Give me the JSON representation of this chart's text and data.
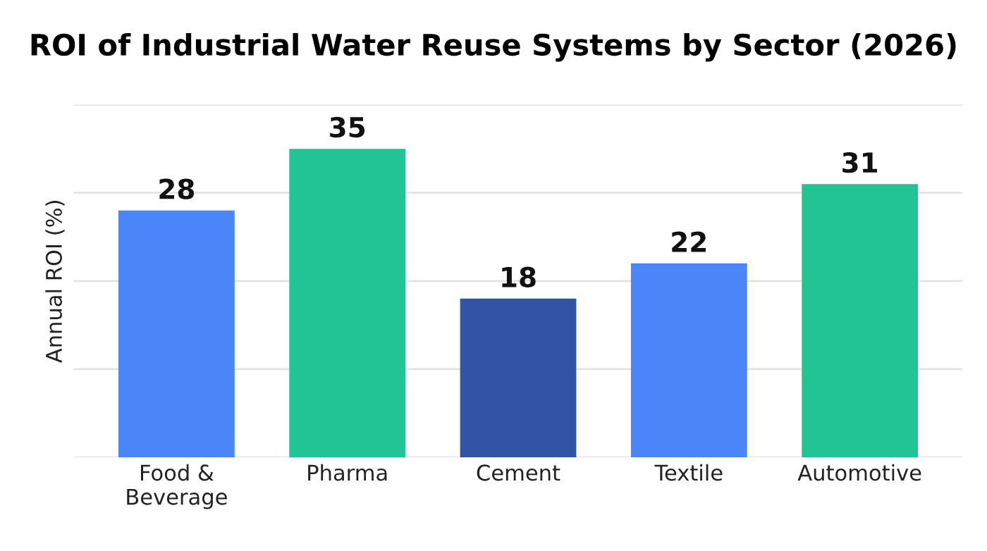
{
  "chart_data": {
    "type": "bar",
    "title": "ROI of Industrial Water Reuse Systems by Sector (2026)",
    "ylabel": "Annual ROI (%)",
    "categories": [
      "Food &\nBeverage",
      "Pharma",
      "Cement",
      "Textile",
      "Automotive"
    ],
    "values": [
      28,
      35,
      18,
      22,
      31
    ],
    "colors": [
      "#4a86f7",
      "#22c493",
      "#2f55a4",
      "#4a86f7",
      "#22c493"
    ],
    "ylim": [
      0,
      40
    ],
    "yticks": [
      {
        "value": 0,
        "label": null
      },
      {
        "value": 10,
        "label": null
      },
      {
        "value": 20,
        "label": null
      },
      {
        "value": 30,
        "label": null
      },
      {
        "value": 40,
        "label": null
      }
    ],
    "tick_labels": "x",
    "grid": "y",
    "data_labels": true
  }
}
